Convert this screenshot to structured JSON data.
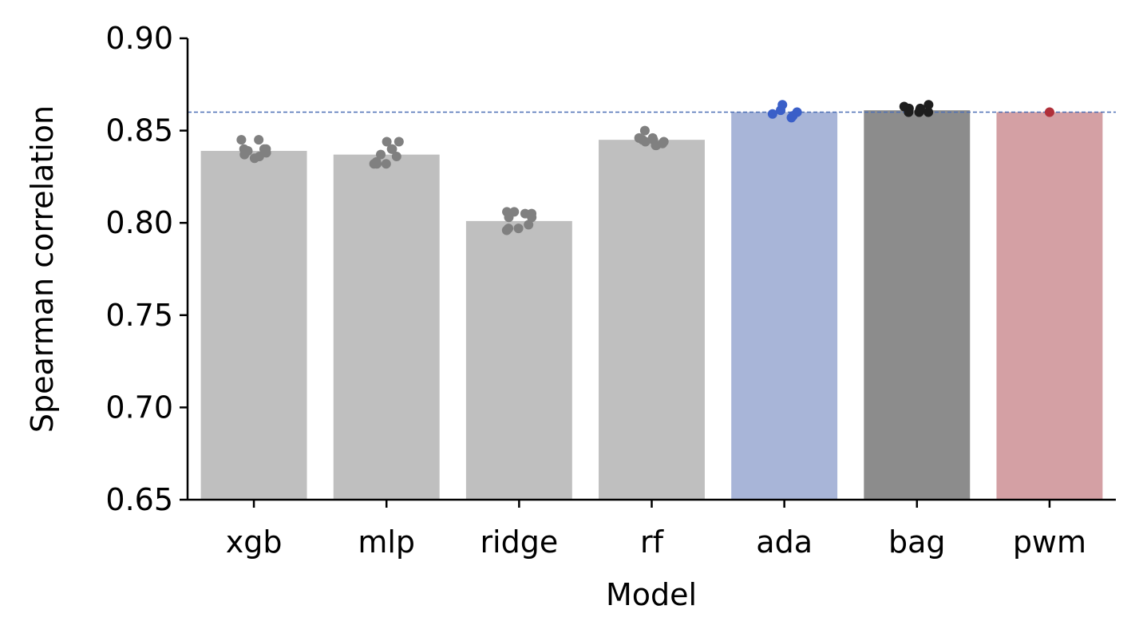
{
  "chart_data": {
    "type": "bar",
    "title": "",
    "xlabel": "Model",
    "ylabel": "Spearman correlation",
    "ylim": [
      0.65,
      0.9
    ],
    "yticks": [
      "0.65",
      "0.70",
      "0.75",
      "0.80",
      "0.85",
      "0.90"
    ],
    "yticks_values": [
      0.65,
      0.7,
      0.75,
      0.8,
      0.85,
      0.9
    ],
    "grid": false,
    "legend": "none",
    "reference_line": {
      "y": 0.86,
      "style": "dashed",
      "color": "#4c6fb5"
    },
    "categories": [
      "xgb",
      "mlp",
      "ridge",
      "rf",
      "ada",
      "bag",
      "pwm"
    ],
    "values": [
      0.839,
      0.837,
      0.801,
      0.845,
      0.86,
      0.861,
      0.86
    ],
    "bar_colors": [
      "#bfbfbf",
      "#bfbfbf",
      "#bfbfbf",
      "#bfbfbf",
      "#a8b5d8",
      "#8c8c8c",
      "#d4a0a4"
    ],
    "point_colors": [
      "#808080",
      "#808080",
      "#808080",
      "#808080",
      "#3a5fc8",
      "#1e1e1e",
      "#b0303a"
    ],
    "points": [
      [
        0.836,
        0.84,
        0.838,
        0.845,
        0.84,
        0.839,
        0.835,
        0.845,
        0.837,
        0.84
      ],
      [
        0.832,
        0.84,
        0.844,
        0.837,
        0.836,
        0.832,
        0.844,
        0.833,
        0.84,
        0.832
      ],
      [
        0.797,
        0.803,
        0.806,
        0.799,
        0.806,
        0.797,
        0.805,
        0.803,
        0.805,
        0.796
      ],
      [
        0.842,
        0.845,
        0.85,
        0.843,
        0.846,
        0.844,
        0.845,
        0.842,
        0.846,
        0.844
      ],
      [
        0.86,
        0.859,
        0.858,
        0.861,
        0.864,
        0.857
      ],
      [
        0.861,
        0.862,
        0.86,
        0.863,
        0.864,
        0.86,
        0.862,
        0.86
      ],
      [
        0.86
      ]
    ]
  }
}
